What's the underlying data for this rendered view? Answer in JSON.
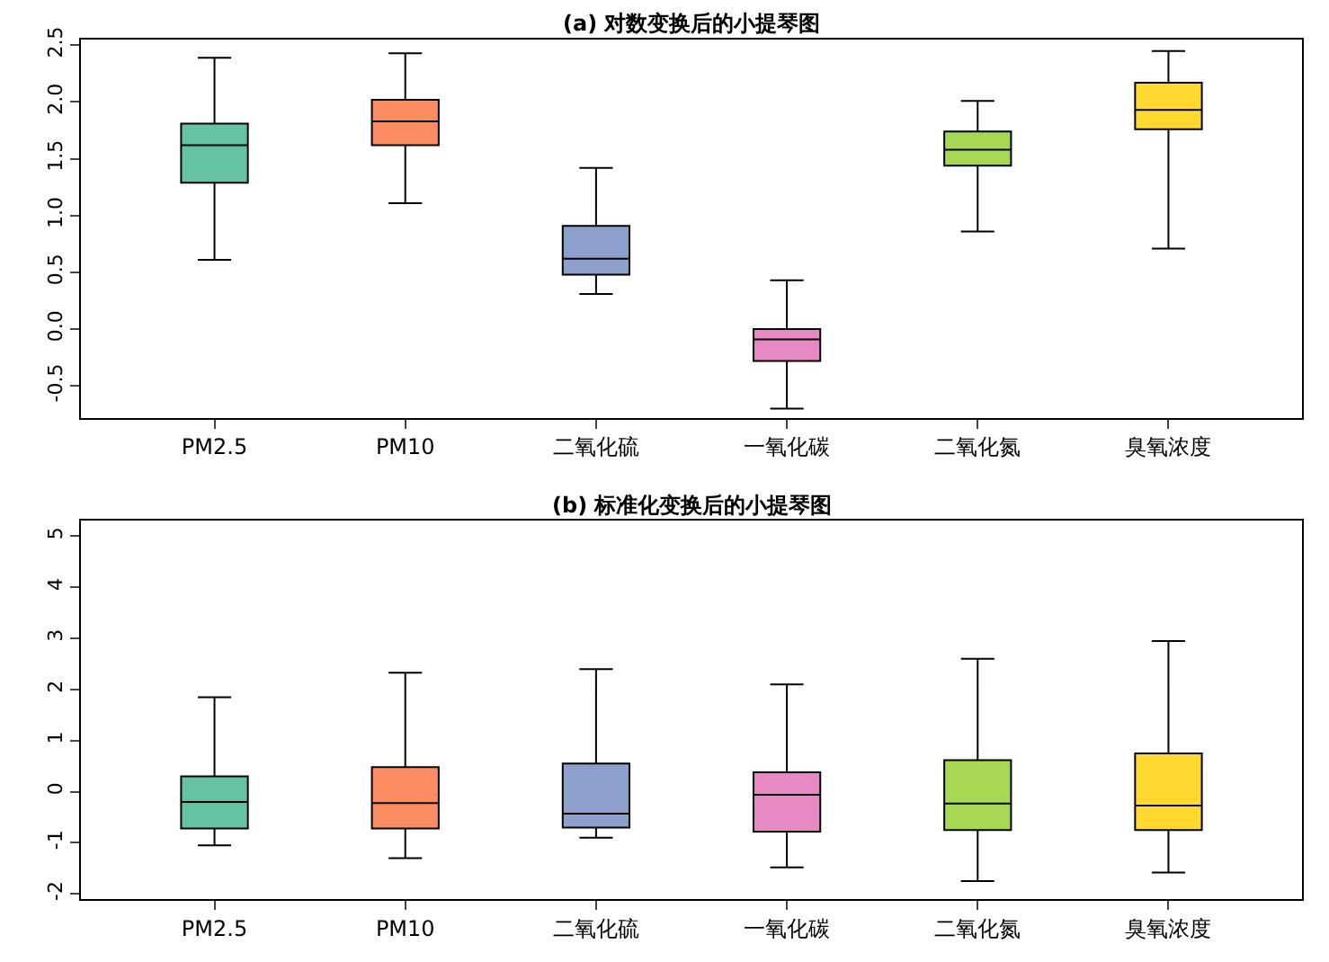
{
  "chart_data": [
    {
      "type": "box",
      "title": "(a) 对数变换后的小提琴图",
      "categories": [
        "PM2.5",
        "PM10",
        "二氧化硫",
        "一氧化碳",
        "二氧化氮",
        "臭氧浓度"
      ],
      "colors": [
        "#66c2a5",
        "#fc8d62",
        "#8da0cb",
        "#e78ac3",
        "#a6d854",
        "#ffd92f"
      ],
      "boxes": [
        {
          "low": 0.61,
          "q1": 1.29,
          "median": 1.62,
          "q3": 1.81,
          "high": 2.39
        },
        {
          "low": 1.11,
          "q1": 1.62,
          "median": 1.83,
          "q3": 2.02,
          "high": 2.43
        },
        {
          "low": 0.31,
          "q1": 0.48,
          "median": 0.62,
          "q3": 0.91,
          "high": 1.42
        },
        {
          "low": -0.7,
          "q1": -0.28,
          "median": -0.09,
          "q3": 0.0,
          "high": 0.43
        },
        {
          "low": 0.86,
          "q1": 1.44,
          "median": 1.58,
          "q3": 1.74,
          "high": 2.01
        },
        {
          "low": 0.71,
          "q1": 1.76,
          "median": 1.93,
          "q3": 2.17,
          "high": 2.45
        }
      ],
      "ylim": [
        -0.78,
        2.55
      ],
      "yticks": [
        -0.5,
        {
          "value": 0,
          "label": "0.0"
        },
        0.5,
        {
          "value": 1,
          "label": "1.0"
        },
        1.5,
        {
          "value": 2,
          "label": "2.0"
        },
        2.5
      ]
    },
    {
      "type": "box",
      "title": "(b) 标准化变换后的小提琴图",
      "categories": [
        "PM2.5",
        "PM10",
        "二氧化硫",
        "一氧化碳",
        "二氧化氮",
        "臭氧浓度"
      ],
      "colors": [
        "#66c2a5",
        "#fc8d62",
        "#8da0cb",
        "#e78ac3",
        "#a6d854",
        "#ffd92f"
      ],
      "boxes": [
        {
          "low": -1.05,
          "q1": -0.72,
          "median": -0.2,
          "q3": 0.3,
          "high": 1.85
        },
        {
          "low": -1.3,
          "q1": -0.72,
          "median": -0.22,
          "q3": 0.48,
          "high": 2.33
        },
        {
          "low": -0.9,
          "q1": -0.7,
          "median": -0.43,
          "q3": 0.55,
          "high": 2.4
        },
        {
          "low": -1.48,
          "q1": -0.78,
          "median": -0.06,
          "q3": 0.38,
          "high": 2.1
        },
        {
          "low": -1.75,
          "q1": -0.75,
          "median": -0.23,
          "q3": 0.62,
          "high": 2.6
        },
        {
          "low": -1.58,
          "q1": -0.75,
          "median": -0.27,
          "q3": 0.75,
          "high": 2.95
        }
      ],
      "ylim": [
        -2.1,
        5.3
      ],
      "yticks": [
        -2,
        -1,
        0,
        1,
        2,
        3,
        4,
        5
      ]
    }
  ]
}
